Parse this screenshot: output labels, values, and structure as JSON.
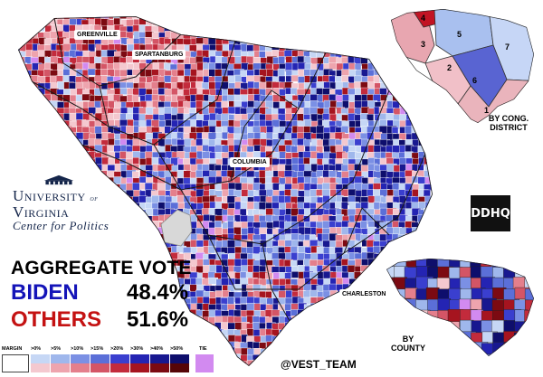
{
  "cities": {
    "greenville": "GREENVILLE",
    "spartanburg": "SPARTANBURG",
    "columbia": "COLUMBIA",
    "charleston": "CHARLESTON"
  },
  "logo": {
    "line1": "University",
    "line1b": "of",
    "line1c": "Virginia",
    "line2": "Center for Politics"
  },
  "aggregate": {
    "title": "AGGREGATE VOTE",
    "candidates": [
      {
        "name": "BIDEN",
        "percent": "48.4%",
        "color": "#1414b8"
      },
      {
        "name": "OTHERS",
        "percent": "51.6%",
        "color": "#c41212"
      }
    ]
  },
  "legend": {
    "title": "MARGIN",
    "thresholds": [
      ">0%",
      ">5%",
      ">10%",
      ">15%",
      ">20%",
      ">30%",
      ">40%",
      ">50%"
    ],
    "tie_label": "TIE",
    "dem_colors": [
      "#c6d7f5",
      "#9fb7ec",
      "#7b90e4",
      "#5b6fd8",
      "#3a3fcf",
      "#2424b3",
      "#181890",
      "#0e0e6c"
    ],
    "rep_colors": [
      "#f4c8cf",
      "#eea4ae",
      "#e47f8c",
      "#d45566",
      "#c32b3c",
      "#a6141f",
      "#7c0a12",
      "#560507"
    ],
    "tie_color": "#d28af0"
  },
  "insets": {
    "congressional_label": "BY CONG. DISTRICT",
    "county_label": "BY COUNTY",
    "district_numbers": [
      "1",
      "2",
      "3",
      "4",
      "5",
      "6",
      "7"
    ]
  },
  "credit": "@VEST_TEAM",
  "badge": "DDHQ"
}
